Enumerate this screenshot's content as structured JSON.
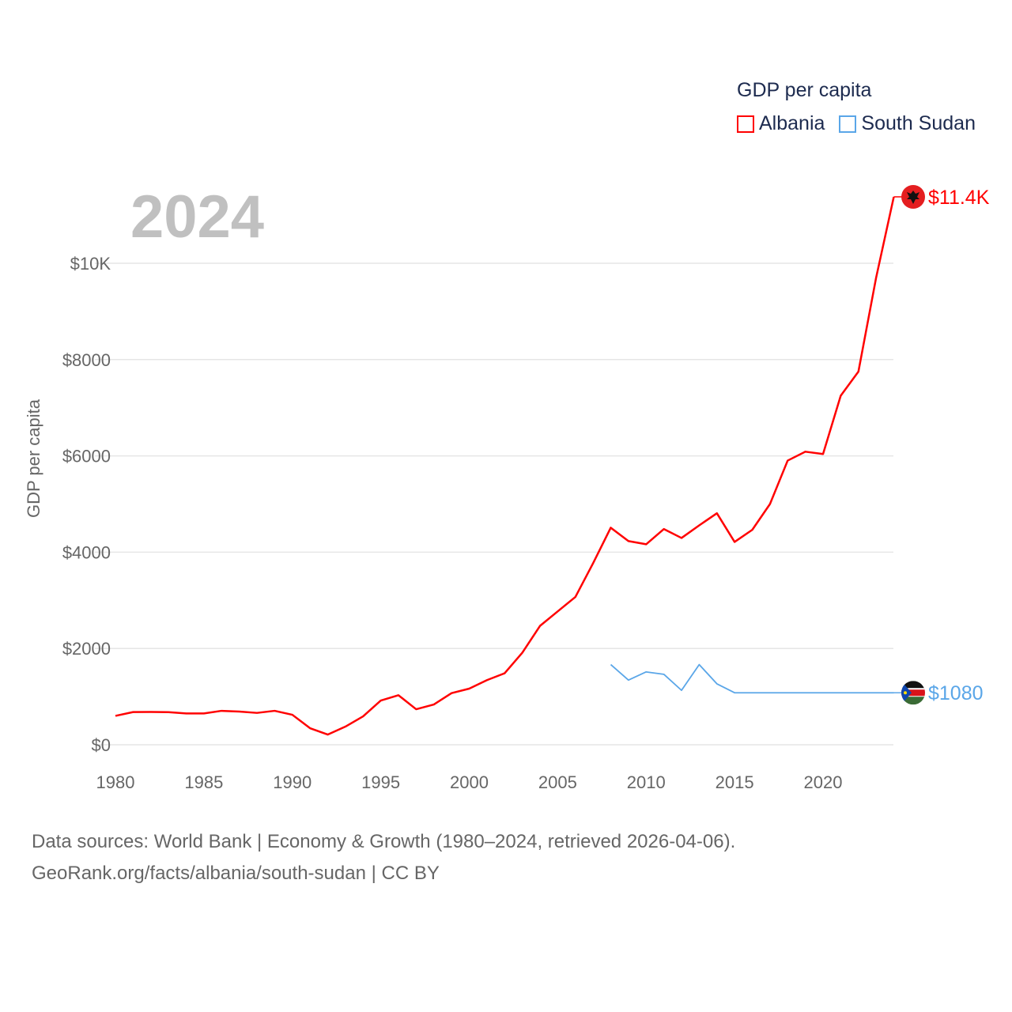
{
  "legend": {
    "title": "GDP per capita",
    "items": [
      {
        "label": "Albania",
        "color": "#ff0000"
      },
      {
        "label": "South Sudan",
        "color": "#5aa6e8"
      }
    ]
  },
  "year_label": "2024",
  "source": {
    "line1": "Data sources: World Bank | Economy & Growth (1980–2024, retrieved 2026-04-06).",
    "line2": "GeoRank.org/facts/albania/south-sudan | CC BY"
  },
  "chart_data": {
    "type": "line",
    "title": "GDP per capita",
    "xlabel": "",
    "ylabel": "GDP per capita",
    "xlim": [
      1980,
      2024
    ],
    "ylim": [
      0,
      11400
    ],
    "grid": true,
    "legend_position": "top-right",
    "x_ticks": [
      1980,
      1985,
      1990,
      1995,
      2000,
      2005,
      2010,
      2015,
      2020
    ],
    "x_tick_labels": [
      "1980",
      "1985",
      "1990",
      "1995",
      "2000",
      "2005",
      "2010",
      "2015",
      "2020"
    ],
    "y_ticks": [
      0,
      2000,
      4000,
      6000,
      8000,
      10000
    ],
    "y_tick_labels": [
      "$0",
      "$2000",
      "$4000",
      "$6000",
      "$8000",
      "$10K"
    ],
    "series": [
      {
        "name": "Albania",
        "color": "#ff0000",
        "end_label": "$11.4K",
        "flag_icon": "albania-flag",
        "x": [
          1980,
          1981,
          1982,
          1983,
          1984,
          1985,
          1986,
          1987,
          1988,
          1989,
          1990,
          1991,
          1992,
          1993,
          1994,
          1995,
          1996,
          1997,
          1998,
          1999,
          2000,
          2001,
          2002,
          2003,
          2004,
          2005,
          2006,
          2007,
          2008,
          2009,
          2010,
          2011,
          2012,
          2013,
          2014,
          2015,
          2016,
          2017,
          2018,
          2019,
          2020,
          2021,
          2022,
          2023,
          2024
        ],
        "values": [
          600,
          679,
          681,
          678,
          651,
          651,
          705,
          689,
          662,
          705,
          623,
          344,
          212,
          377,
          590,
          919,
          1029,
          738,
          837,
          1073,
          1166,
          1342,
          1485,
          1911,
          2469,
          2770,
          3070,
          3770,
          4508,
          4230,
          4164,
          4480,
          4295,
          4557,
          4808,
          4213,
          4464,
          5000,
          5902,
          6087,
          6038,
          7250,
          7750,
          9700,
          11380
        ]
      },
      {
        "name": "South Sudan",
        "color": "#5aa6e8",
        "end_label": "$1080",
        "flag_icon": "south-sudan-flag",
        "x": [
          2008,
          2009,
          2010,
          2011,
          2012,
          2013,
          2014,
          2015,
          2016,
          2017,
          2018,
          2019,
          2020,
          2021,
          2022,
          2023,
          2024
        ],
        "values": [
          1665,
          1344,
          1513,
          1464,
          1131,
          1665,
          1266,
          1080,
          1080,
          1080,
          1080,
          1080,
          1080,
          1080,
          1080,
          1080,
          1080
        ]
      }
    ]
  }
}
